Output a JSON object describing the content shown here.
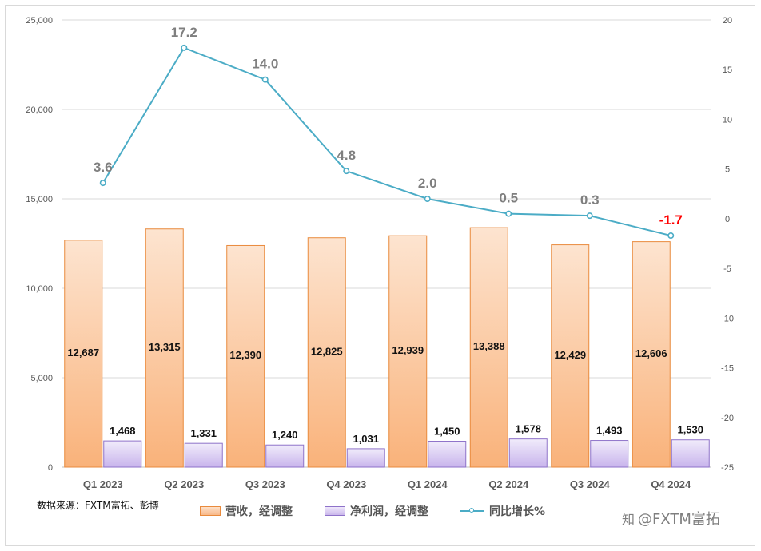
{
  "chart_data": {
    "type": "bar",
    "categories": [
      "Q1 2023",
      "Q2 2023",
      "Q3 2023",
      "Q4 2023",
      "Q1 2024",
      "Q2 2024",
      "Q3 2024",
      "Q4 2024"
    ],
    "series": [
      {
        "name": "营收，经调整",
        "type": "bar",
        "axis": "left",
        "color": "#f4a460",
        "values": [
          12687,
          13315,
          12390,
          12825,
          12939,
          13388,
          12429,
          12606
        ],
        "labels": [
          "12,687",
          "13,315",
          "12,390",
          "12,825",
          "12,939",
          "13,388",
          "12,429",
          "12,606"
        ]
      },
      {
        "name": "净利润，经调整",
        "type": "bar",
        "axis": "left",
        "color": "#9a7fd1",
        "values": [
          1468,
          1331,
          1240,
          1031,
          1450,
          1578,
          1493,
          1530
        ],
        "labels": [
          "1,468",
          "1,331",
          "1,240",
          "1,031",
          "1,450",
          "1,578",
          "1,493",
          "1,530"
        ]
      },
      {
        "name": "同比增长%",
        "type": "line",
        "axis": "right",
        "color": "#4bacc6",
        "values": [
          3.6,
          17.2,
          14.0,
          4.8,
          2.0,
          0.5,
          0.3,
          -1.7
        ],
        "labels": [
          "3.6",
          "17.2",
          "14.0",
          "4.8",
          "2.0",
          "0.5",
          "0.3",
          "-1.7"
        ]
      }
    ],
    "y_left": {
      "min": 0,
      "max": 25000,
      "ticks": [
        0,
        5000,
        10000,
        15000,
        20000,
        25000
      ],
      "tick_labels": [
        "0",
        "5,000",
        "10,000",
        "15,000",
        "20,000",
        "25,000"
      ]
    },
    "y_right": {
      "min": -25,
      "max": 20,
      "ticks": [
        -25,
        -20,
        -15,
        -10,
        -5,
        0,
        5,
        10,
        15,
        20
      ],
      "tick_labels": [
        "-25",
        "-20",
        "-15",
        "-10",
        "-5",
        "0",
        "5",
        "10",
        "15",
        "20"
      ]
    },
    "grid": true,
    "legend_position": "bottom",
    "highlight_negative_color": "#ff0000"
  },
  "source_note": "数据来源：FXTM富拓、彭博",
  "watermark": {
    "icon": "zhihu-icon",
    "icon_glyph": "知",
    "text": "@FXTM富拓"
  }
}
